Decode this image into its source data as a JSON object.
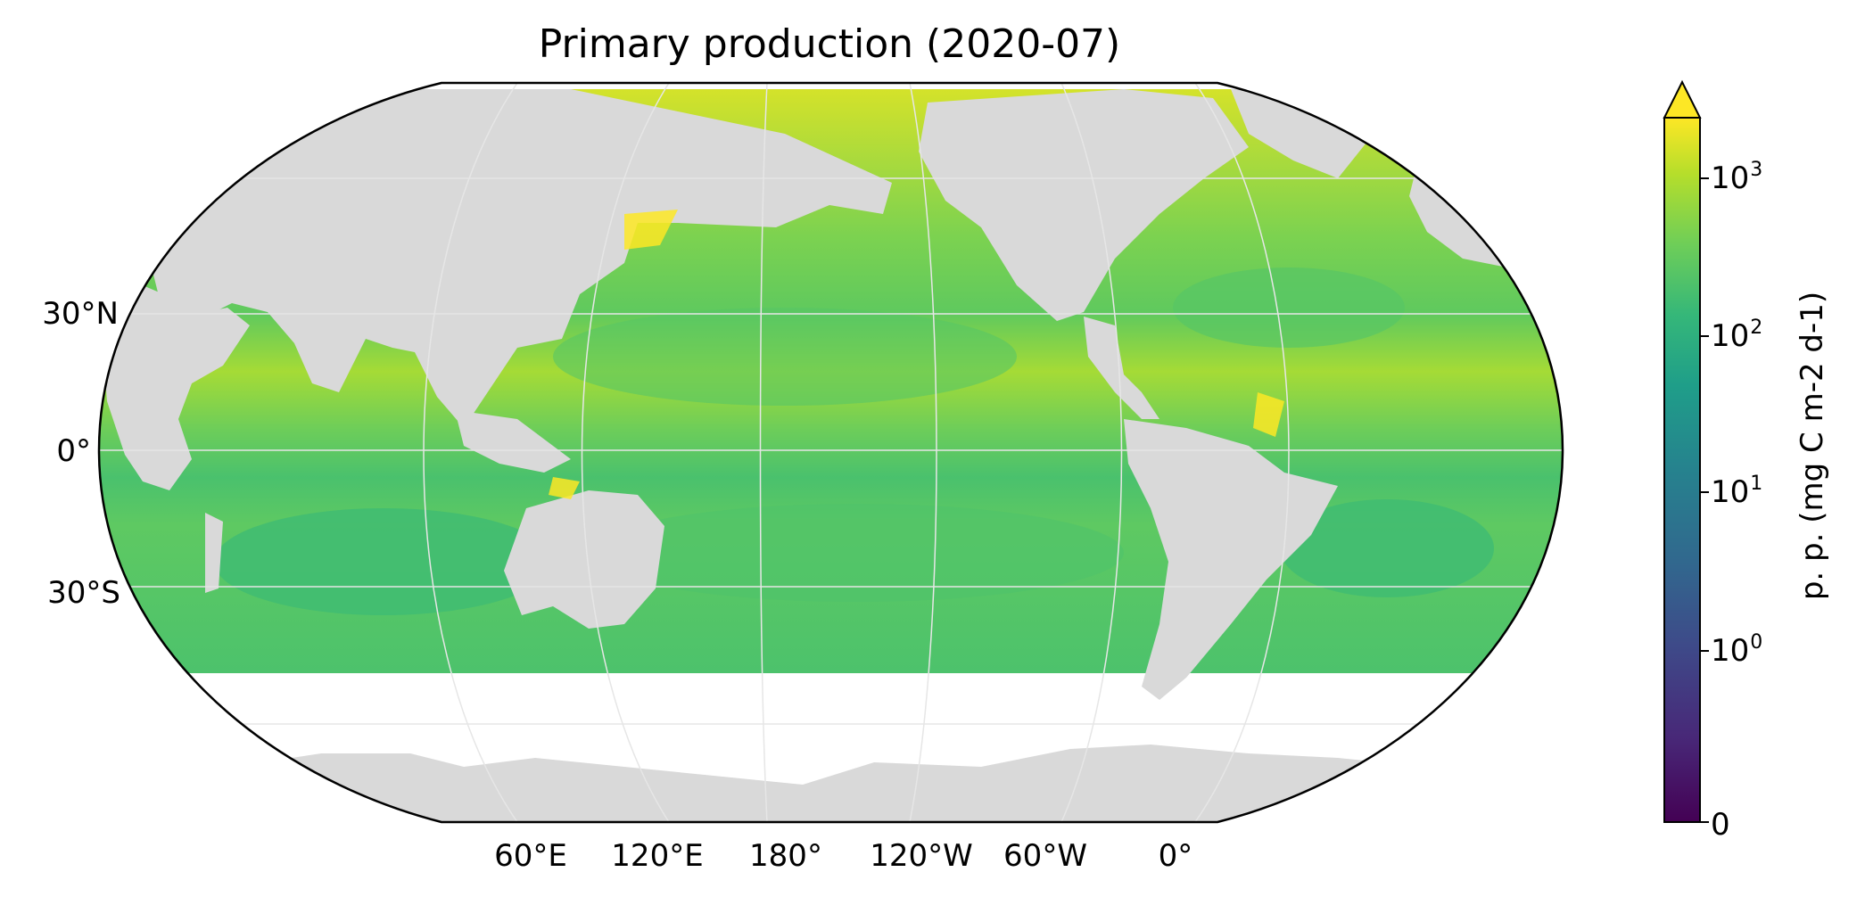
{
  "title": "Primary production (2020-07)",
  "longitude_labels": [
    "60°E",
    "120°E",
    "180°",
    "120°W",
    "60°W",
    "0°"
  ],
  "latitude_labels": [
    "30°N",
    "0°",
    "30°S"
  ],
  "colorbar": {
    "label": "p. p. (mg C m-2 d-1)",
    "colormap": "viridis",
    "scale": "symlog",
    "extend": "max",
    "ticks": [
      {
        "base": "0",
        "exp": ""
      },
      {
        "base": "10",
        "exp": "0"
      },
      {
        "base": "10",
        "exp": "1"
      },
      {
        "base": "10",
        "exp": "2"
      },
      {
        "base": "10",
        "exp": "3"
      }
    ]
  },
  "colors": {
    "land": "#d9d9d9",
    "no_data": "#ffffff",
    "low_production": "#5bc863",
    "high_production": "#fde725"
  }
}
